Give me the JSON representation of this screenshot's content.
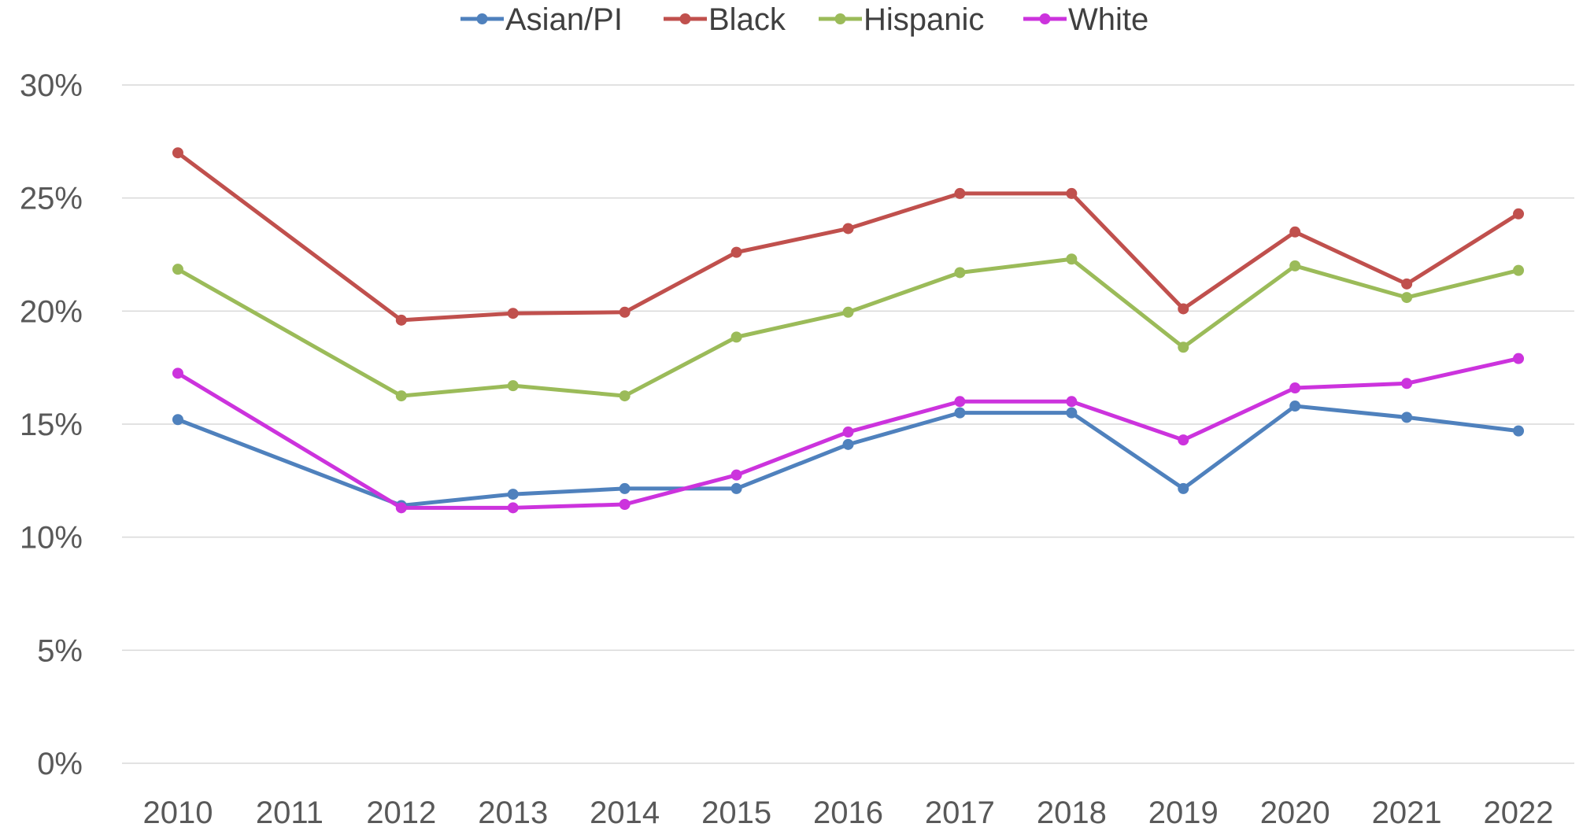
{
  "chart_data": {
    "type": "line",
    "title": "",
    "xlabel": "",
    "ylabel": "",
    "categories": [
      "2010",
      "2011",
      "2012",
      "2013",
      "2014",
      "2015",
      "2016",
      "2017",
      "2018",
      "2019",
      "2020",
      "2021",
      "2022"
    ],
    "ylim": [
      0,
      30
    ],
    "yticks": [
      "0%",
      "5%",
      "10%",
      "15%",
      "20%",
      "25%",
      "30%"
    ],
    "ytick_values": [
      0,
      5,
      10,
      15,
      20,
      25,
      30
    ],
    "grid": true,
    "legend_position": "top",
    "series": [
      {
        "name": "Asian/PI",
        "color": "#4f81bd",
        "values": [
          15.2,
          null,
          11.4,
          11.9,
          12.15,
          12.15,
          14.1,
          15.5,
          15.5,
          12.15,
          15.8,
          15.3,
          14.7
        ]
      },
      {
        "name": "Black",
        "color": "#c0504d",
        "values": [
          27.0,
          null,
          19.6,
          19.9,
          19.95,
          22.6,
          23.65,
          25.2,
          25.2,
          20.1,
          23.5,
          21.2,
          24.3
        ]
      },
      {
        "name": "Hispanic",
        "color": "#9bbb59",
        "values": [
          21.85,
          null,
          16.25,
          16.7,
          16.25,
          18.85,
          19.95,
          21.7,
          22.3,
          18.4,
          22.0,
          20.6,
          21.8
        ]
      },
      {
        "name": "White",
        "color": "#cc33dd",
        "values": [
          17.25,
          null,
          11.3,
          11.3,
          11.45,
          12.75,
          14.65,
          16.0,
          16.0,
          14.3,
          16.6,
          16.8,
          17.9
        ]
      }
    ]
  }
}
